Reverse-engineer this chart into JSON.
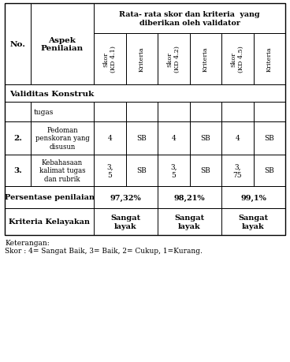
{
  "header_top_line1": "Rata- rata skor dan kriteria  yang",
  "header_top_line2": "diberikan oleh validator",
  "col_headers_rotated": [
    "Skor\n(KD 4.1)",
    "Kriteria",
    "Skor\n(KD 4.2)",
    "Kriteria",
    "Skor\n(KD 4.5)",
    "Kriteria"
  ],
  "row_header_no": "No.",
  "row_header_aspek": "Aspek\nPenilaian",
  "section_label": "Validitas Konstruk",
  "row1_no": "",
  "row1_aspek": "tugas",
  "row2_no": "2.",
  "row2_aspek": "Pedoman\npenskoran yang\ndisusun",
  "row2_vals": [
    "4",
    "SB",
    "4",
    "SB",
    "4",
    "SB"
  ],
  "row3_no": "3.",
  "row3_aspek": "Kebahasaan\nkalimat tugas\ndan rubrik",
  "row3_vals": [
    "3,\n5",
    "SB",
    "3,\n5",
    "SB",
    "3,\n75",
    "SB"
  ],
  "persentase_label": "Persentase penilaian",
  "persentase_values": [
    "97,32%",
    "98,21%",
    "99,1%"
  ],
  "kriteria_label": "Kriteria Kelayakan",
  "kriteria_values": [
    "Sangat\nlayak",
    "Sangat\nlayak",
    "Sangat\nlayak"
  ],
  "keterangan_line1": "Keterangan:",
  "keterangan_line2": "Skor : 4= Sangat Baik, 3= Baik, 2= Cukup, 1=Kurang.",
  "bg_color": "#ffffff"
}
